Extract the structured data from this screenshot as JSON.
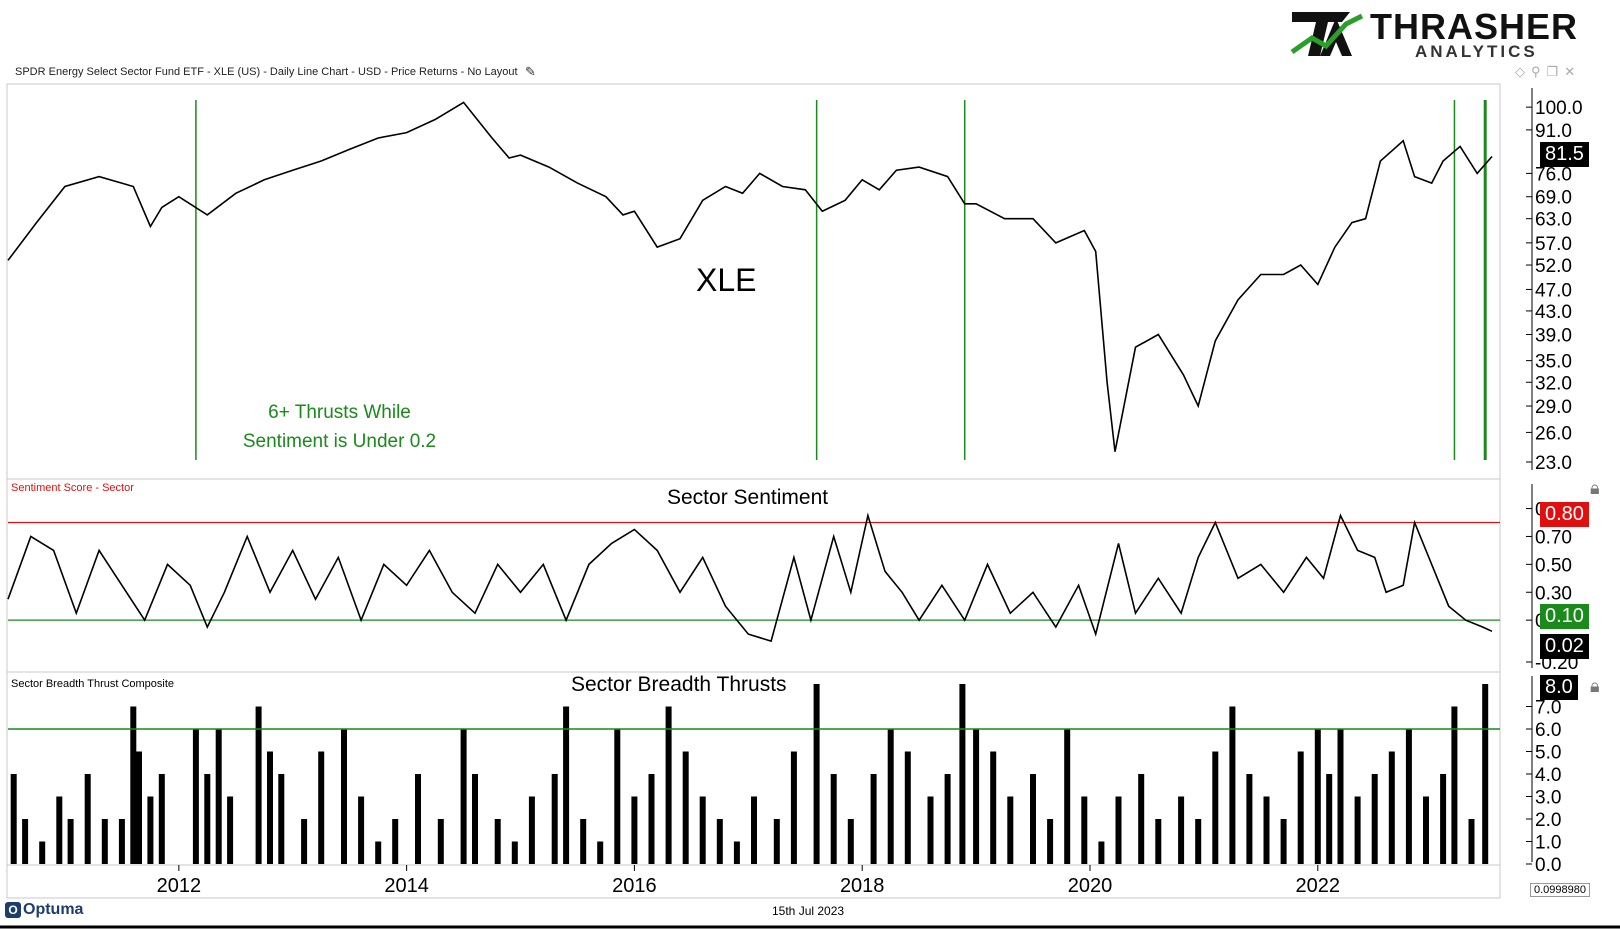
{
  "header": {
    "title": "SPDR Energy Select Sector Fund ETF - XLE (US) - Daily Line Chart - USD - Price Returns - No Layout",
    "logo_main": "THRASHER",
    "logo_sub": "ANALYTICS",
    "logo_mark": "TA"
  },
  "footer": {
    "date": "15th Jul 2023",
    "brand": "Optuma",
    "scale_box": "0.0998980"
  },
  "colors": {
    "green": "#1a8a1a",
    "red": "#e01010",
    "line": "#000000"
  },
  "icons": [
    "pencil-icon",
    "diamond-icon",
    "pin-icon",
    "window-icon",
    "close-icon",
    "lock-icon"
  ],
  "chart_data": [
    {
      "type": "line",
      "title": "XLE",
      "annotation": "6+ Thrusts While\nSentiment is Under 0.2",
      "annotation_line1": "6+ Thrusts While",
      "annotation_line2": "Sentiment is Under 0.2",
      "y_scale": "log",
      "ylim": [
        23,
        103
      ],
      "y_ticks": [
        100.0,
        91.0,
        76.0,
        69.0,
        63.0,
        57.0,
        52.0,
        47.0,
        43.0,
        39.0,
        35.0,
        32.0,
        29.0,
        26.0,
        23.0
      ],
      "y_tick_labels": [
        "100.0",
        "91.0",
        "76.0",
        "69.0",
        "63.0",
        "57.0",
        "52.0",
        "47.0",
        "43.0",
        "39.0",
        "35.0",
        "32.0",
        "29.0",
        "26.0",
        "23.0"
      ],
      "last_value_label": "81.5",
      "signal_dates": [
        2012.15,
        2017.6,
        2018.9,
        2023.2,
        2023.47
      ],
      "series": [
        {
          "x": [
            2010.5,
            2010.75,
            2011.0,
            2011.3,
            2011.6,
            2011.75,
            2011.85,
            2012.0,
            2012.25,
            2012.5,
            2012.75,
            2013.0,
            2013.25,
            2013.5,
            2013.75,
            2014.0,
            2014.25,
            2014.5,
            2014.75,
            2014.9,
            2015.0,
            2015.25,
            2015.5,
            2015.75,
            2015.9,
            2016.0,
            2016.2,
            2016.4,
            2016.6,
            2016.8,
            2016.95,
            2017.1,
            2017.3,
            2017.5,
            2017.65,
            2017.85,
            2018.0,
            2018.15,
            2018.3,
            2018.5,
            2018.75,
            2018.9,
            2019.0,
            2019.25,
            2019.5,
            2019.7,
            2019.95,
            2020.05,
            2020.15,
            2020.22,
            2020.4,
            2020.6,
            2020.82,
            2020.95,
            2021.1,
            2021.3,
            2021.5,
            2021.7,
            2021.85,
            2022.0,
            2022.15,
            2022.3,
            2022.42,
            2022.55,
            2022.75,
            2022.85,
            2023.0,
            2023.1,
            2023.25,
            2023.4,
            2023.53
          ],
          "values": [
            53,
            62,
            72,
            75,
            72,
            61,
            66,
            69,
            64,
            70,
            74,
            77,
            80,
            84,
            88,
            90,
            95,
            102,
            88,
            81,
            82,
            78,
            73,
            69,
            64,
            65,
            56,
            58,
            68,
            72,
            70,
            76,
            72,
            71,
            65,
            68,
            74,
            71,
            77,
            78,
            75,
            67,
            67,
            63,
            63,
            57,
            60,
            55,
            32,
            24,
            37,
            39,
            33,
            29,
            38,
            45,
            50,
            50,
            52,
            48,
            56,
            62,
            63,
            80,
            87,
            75,
            73,
            80,
            85,
            76,
            81.5
          ]
        }
      ]
    },
    {
      "type": "line",
      "title": "Sector Sentiment",
      "indicator_label": "Sentiment Score - Sector",
      "ylim": [
        -0.2,
        0.99
      ],
      "y_ticks": [
        0.9,
        0.7,
        0.5,
        0.3,
        0.1,
        -0.2
      ],
      "y_tick_labels": [
        "0.90",
        "0.70",
        "0.50",
        "0.30",
        "0.10",
        "-0.20"
      ],
      "upper_threshold": 0.8,
      "lower_threshold": 0.1,
      "upper_label": "0.80",
      "lower_label": "0.10",
      "last_value_label": "0.02",
      "series": [
        {
          "x": [
            2010.5,
            2010.7,
            2010.9,
            2011.1,
            2011.3,
            2011.5,
            2011.7,
            2011.9,
            2012.1,
            2012.25,
            2012.4,
            2012.6,
            2012.8,
            2013.0,
            2013.2,
            2013.4,
            2013.6,
            2013.8,
            2014.0,
            2014.2,
            2014.4,
            2014.6,
            2014.8,
            2015.0,
            2015.2,
            2015.4,
            2015.6,
            2015.8,
            2016.0,
            2016.2,
            2016.4,
            2016.6,
            2016.8,
            2017.0,
            2017.2,
            2017.4,
            2017.55,
            2017.75,
            2017.9,
            2018.05,
            2018.2,
            2018.35,
            2018.5,
            2018.7,
            2018.9,
            2019.1,
            2019.3,
            2019.5,
            2019.7,
            2019.9,
            2020.05,
            2020.25,
            2020.4,
            2020.6,
            2020.8,
            2020.95,
            2021.1,
            2021.3,
            2021.5,
            2021.7,
            2021.9,
            2022.05,
            2022.2,
            2022.35,
            2022.5,
            2022.6,
            2022.75,
            2022.85,
            2023.0,
            2023.15,
            2023.3,
            2023.45,
            2023.53
          ],
          "values": [
            0.25,
            0.7,
            0.6,
            0.15,
            0.6,
            0.35,
            0.1,
            0.5,
            0.35,
            0.05,
            0.3,
            0.7,
            0.3,
            0.6,
            0.25,
            0.55,
            0.1,
            0.5,
            0.35,
            0.6,
            0.3,
            0.15,
            0.5,
            0.3,
            0.5,
            0.1,
            0.5,
            0.65,
            0.75,
            0.6,
            0.3,
            0.55,
            0.2,
            0.0,
            -0.05,
            0.55,
            0.1,
            0.7,
            0.3,
            0.85,
            0.45,
            0.3,
            0.1,
            0.35,
            0.1,
            0.5,
            0.15,
            0.3,
            0.05,
            0.35,
            0.0,
            0.65,
            0.15,
            0.4,
            0.15,
            0.55,
            0.8,
            0.4,
            0.5,
            0.3,
            0.55,
            0.4,
            0.85,
            0.6,
            0.55,
            0.3,
            0.35,
            0.8,
            0.5,
            0.2,
            0.1,
            0.05,
            0.02
          ]
        }
      ]
    },
    {
      "type": "bar",
      "title": "Sector Breadth Thrusts",
      "indicator_label": "Sector Breadth Thrust Composite",
      "ylim": [
        0,
        8
      ],
      "y_ticks": [
        7.0,
        6.0,
        5.0,
        4.0,
        3.0,
        2.0,
        1.0,
        0.0
      ],
      "y_tick_labels": [
        "7.0",
        "6.0",
        "5.0",
        "4.0",
        "3.0",
        "2.0",
        "1.0",
        "0.0"
      ],
      "threshold": 6.0,
      "last_value_label": "8.0",
      "series": [
        {
          "x": [
            2010.55,
            2010.65,
            2010.8,
            2010.95,
            2011.05,
            2011.2,
            2011.35,
            2011.5,
            2011.6,
            2011.65,
            2011.75,
            2011.85,
            2012.15,
            2012.25,
            2012.35,
            2012.45,
            2012.7,
            2012.8,
            2012.9,
            2013.1,
            2013.25,
            2013.45,
            2013.6,
            2013.75,
            2013.9,
            2014.1,
            2014.3,
            2014.5,
            2014.6,
            2014.8,
            2014.95,
            2015.1,
            2015.3,
            2015.4,
            2015.55,
            2015.7,
            2015.85,
            2016.0,
            2016.15,
            2016.3,
            2016.45,
            2016.6,
            2016.75,
            2016.9,
            2017.05,
            2017.25,
            2017.4,
            2017.6,
            2017.75,
            2017.9,
            2018.1,
            2018.25,
            2018.4,
            2018.6,
            2018.75,
            2018.88,
            2019.0,
            2019.15,
            2019.3,
            2019.5,
            2019.65,
            2019.8,
            2019.95,
            2020.1,
            2020.25,
            2020.45,
            2020.6,
            2020.8,
            2020.95,
            2021.1,
            2021.25,
            2021.4,
            2021.55,
            2021.7,
            2021.85,
            2022.0,
            2022.1,
            2022.2,
            2022.35,
            2022.5,
            2022.65,
            2022.8,
            2022.95,
            2023.1,
            2023.2,
            2023.35,
            2023.47
          ],
          "values": [
            4,
            2,
            1,
            3,
            2,
            4,
            2,
            2,
            7,
            5,
            3,
            4,
            6,
            4,
            6,
            3,
            7,
            5,
            4,
            2,
            5,
            6,
            3,
            1,
            2,
            4,
            2,
            6,
            4,
            2,
            1,
            3,
            4,
            7,
            2,
            1,
            6,
            3,
            4,
            7,
            5,
            3,
            2,
            1,
            3,
            2,
            5,
            8,
            4,
            2,
            4,
            6,
            5,
            3,
            4,
            8,
            6,
            5,
            3,
            4,
            2,
            6,
            3,
            1,
            3,
            4,
            2,
            3,
            2,
            5,
            7,
            4,
            3,
            2,
            5,
            6,
            4,
            6,
            3,
            4,
            5,
            6,
            3,
            4,
            7,
            2,
            8
          ]
        }
      ]
    }
  ],
  "x_axis": {
    "ticks": [
      2012,
      2014,
      2016,
      2018,
      2020,
      2022
    ],
    "tick_labels": [
      "2012",
      "2014",
      "2016",
      "2018",
      "2020",
      "2022"
    ],
    "range": [
      2010.5,
      2023.6
    ]
  }
}
